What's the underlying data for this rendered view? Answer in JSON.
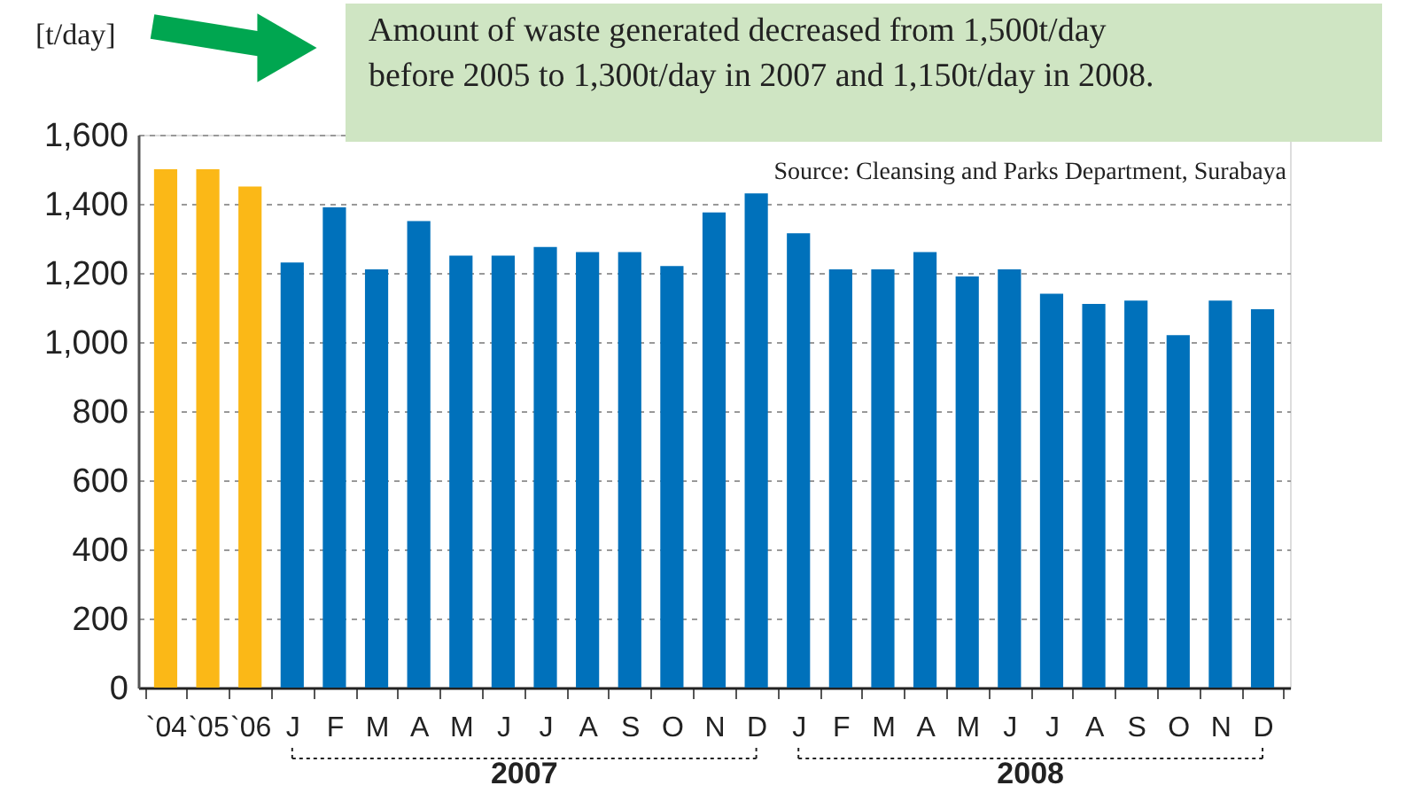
{
  "chart_data": {
    "type": "bar",
    "title": "Amount of waste generated decreased from 1,500t/day\nbefore 2005 to 1,300t/day in 2007 and 1,150t/day in 2008.",
    "ylabel": "[t/day]",
    "categories": [
      "`04",
      "`05",
      "`06",
      "J",
      "F",
      "M",
      "A",
      "M",
      "J",
      "J",
      "A",
      "S",
      "O",
      "N",
      "D",
      "J",
      "F",
      "M",
      "A",
      "M",
      "J",
      "J",
      "A",
      "S",
      "O",
      "N",
      "D"
    ],
    "values": [
      1500,
      1500,
      1450,
      1230,
      1390,
      1210,
      1350,
      1250,
      1250,
      1275,
      1260,
      1260,
      1220,
      1375,
      1430,
      1315,
      1210,
      1210,
      1260,
      1190,
      1210,
      1140,
      1110,
      1120,
      1020,
      1120,
      1095
    ],
    "colors": [
      "#fbb817",
      "#fbb817",
      "#fbb817",
      "#0071bb",
      "#0071bb",
      "#0071bb",
      "#0071bb",
      "#0071bb",
      "#0071bb",
      "#0071bb",
      "#0071bb",
      "#0071bb",
      "#0071bb",
      "#0071bb",
      "#0071bb",
      "#0071bb",
      "#0071bb",
      "#0071bb",
      "#0071bb",
      "#0071bb",
      "#0071bb",
      "#0071bb",
      "#0071bb",
      "#0071bb",
      "#0071bb",
      "#0071bb",
      "#0071bb"
    ],
    "ylim": [
      0,
      1600
    ],
    "yticks": [
      0,
      {
        "value": 200,
        "label": "200"
      },
      400,
      600,
      800,
      {
        "value": 1000,
        "label": "1,000"
      },
      {
        "value": 1200,
        "label": "1,200"
      },
      {
        "value": 1400,
        "label": "1,400"
      },
      {
        "value": 1600,
        "label": "1,600"
      }
    ],
    "grid": "y",
    "annotations": [
      "Source: Cleansing and Parks Department, Surabaya",
      "2007",
      "2008"
    ]
  }
}
